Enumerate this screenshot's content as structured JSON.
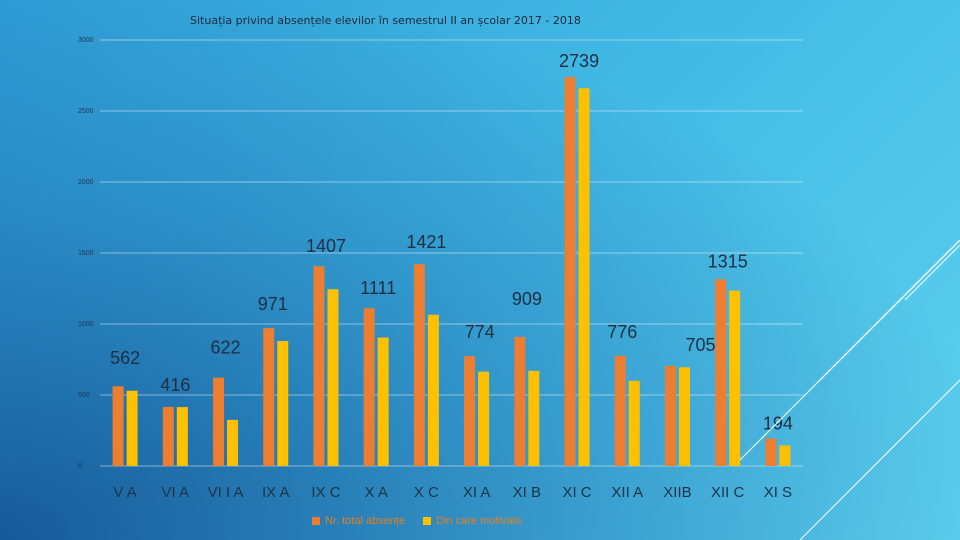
{
  "chart_data": {
    "type": "bar",
    "title": "Situația privind absențele elevilor în semestrul II an școlar 2017 - 2018",
    "categories": [
      "V A",
      "VI A",
      "VI I A",
      "IX A",
      "IX C",
      "X A",
      "X C",
      "XI A",
      "XI B",
      "XI C",
      "XII A",
      "XIIB",
      "XII C",
      "XI S"
    ],
    "series": [
      {
        "name": "Nr. total absențe",
        "color": "#ed7d31",
        "values": [
          562,
          416,
          622,
          971,
          1407,
          1111,
          1421,
          774,
          909,
          2739,
          776,
          705,
          1315,
          194
        ]
      },
      {
        "name": "Din care motivate",
        "color": "#ffc000",
        "values": [
          530,
          415,
          325,
          880,
          1245,
          905,
          1065,
          665,
          670,
          2660,
          600,
          695,
          1235,
          145
        ]
      }
    ],
    "ylim": [
      0,
      3000
    ],
    "yticks": [
      0,
      500,
      1000,
      1500,
      2000,
      2500,
      3000
    ],
    "ytick_labels": [
      "0",
      "500",
      "1000",
      "1500",
      "2000",
      "2500",
      "3000"
    ],
    "data_labels": [
      "562",
      "416",
      "622",
      "971",
      "1407",
      "1111",
      "1421",
      "774",
      "909",
      "2739",
      "776",
      "705",
      "1315",
      "194"
    ],
    "grid": true,
    "legend": "bottom",
    "xlabel": "",
    "ylabel": ""
  }
}
